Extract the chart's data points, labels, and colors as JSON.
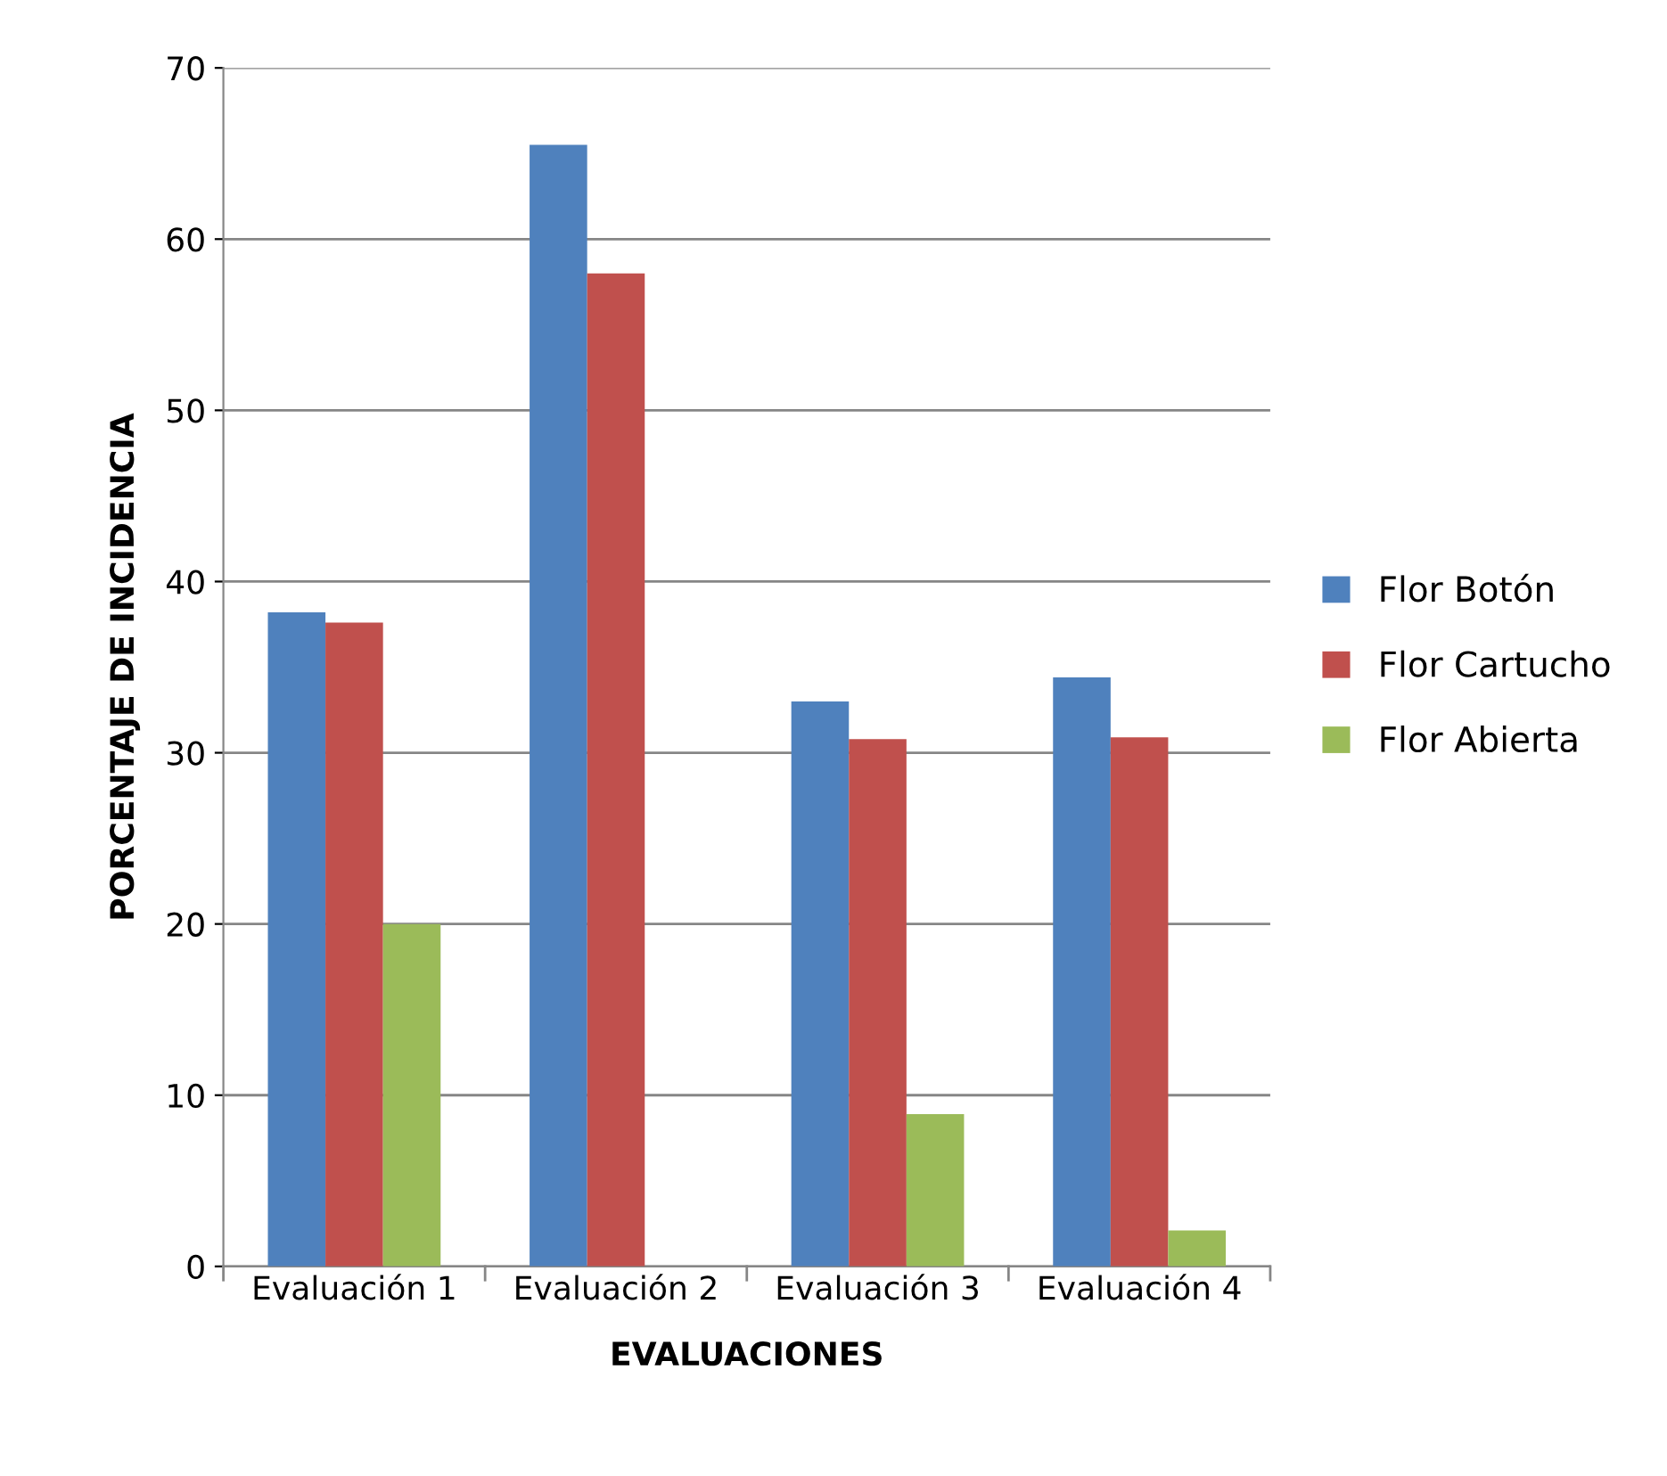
{
  "chart_data": {
    "type": "bar",
    "xlabel": "EVALUACIONES",
    "ylabel": "PORCENTAJE DE INCIDENCIA",
    "categories": [
      "Evaluación 1",
      "Evaluación 2",
      "Evaluación 3",
      "Evaluación 4"
    ],
    "series": [
      {
        "name": "Flor Botón",
        "color": "#4f81bd",
        "values": [
          38.2,
          65.5,
          33.0,
          34.4
        ]
      },
      {
        "name": "Flor Cartucho",
        "color": "#c0504d",
        "values": [
          37.6,
          58.0,
          30.8,
          30.9
        ]
      },
      {
        "name": "Flor Abierta",
        "color": "#9bbb59",
        "values": [
          20.0,
          0,
          8.9,
          2.1
        ]
      }
    ],
    "ylim": [
      0,
      70
    ],
    "yticks": [
      0,
      10,
      20,
      30,
      40,
      50,
      60,
      70
    ],
    "grid": "y",
    "legend": "right"
  }
}
